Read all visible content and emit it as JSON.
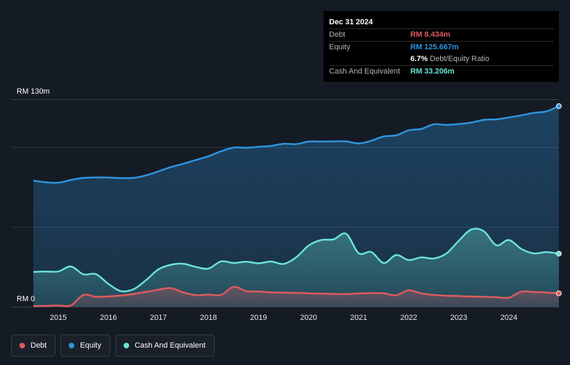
{
  "tooltip": {
    "date": "Dec 31 2024",
    "debt_label": "Debt",
    "debt_value": "RM 8.434m",
    "equity_label": "Equity",
    "equity_value": "RM 125.667m",
    "ratio_value": "6.7%",
    "ratio_label": "Debt/Equity Ratio",
    "cash_label": "Cash And Equivalent",
    "cash_value": "RM 33.206m"
  },
  "legend": {
    "debt": "Debt",
    "equity": "Equity",
    "cash": "Cash And Equivalent"
  },
  "colors": {
    "background": "#151b24",
    "debt": "#e05a5f",
    "equity": "#2f95e0",
    "cash": "#6be3d5",
    "grid": "#2a3340"
  },
  "chart_data": {
    "type": "area",
    "title": "",
    "xlabel": "",
    "ylabel": "",
    "ylim": [
      0,
      130
    ],
    "y_top_label": "RM 130m",
    "y_bottom_label": "RM 0",
    "x_ticks": [
      "2015",
      "2016",
      "2017",
      "2018",
      "2019",
      "2020",
      "2021",
      "2022",
      "2023",
      "2024"
    ],
    "x_tick_values": [
      2015,
      2016,
      2017,
      2018,
      2019,
      2020,
      2021,
      2022,
      2023,
      2024
    ],
    "xlim": [
      2014.5,
      2025.0
    ],
    "series": [
      {
        "name": "Equity",
        "key": "equity",
        "points": [
          [
            2014.5,
            79.0
          ],
          [
            2014.75,
            78.0
          ],
          [
            2015.0,
            77.7
          ],
          [
            2015.25,
            79.4
          ],
          [
            2015.5,
            80.7
          ],
          [
            2015.75,
            81.0
          ],
          [
            2016.0,
            80.9
          ],
          [
            2016.25,
            80.6
          ],
          [
            2016.5,
            80.7
          ],
          [
            2016.75,
            82.3
          ],
          [
            2017.0,
            84.8
          ],
          [
            2017.25,
            87.5
          ],
          [
            2017.5,
            89.6
          ],
          [
            2017.75,
            91.9
          ],
          [
            2018.0,
            94.3
          ],
          [
            2018.25,
            97.4
          ],
          [
            2018.5,
            99.7
          ],
          [
            2018.75,
            99.6
          ],
          [
            2019.0,
            100.2
          ],
          [
            2019.25,
            100.8
          ],
          [
            2019.5,
            102.1
          ],
          [
            2019.75,
            101.9
          ],
          [
            2020.0,
            103.5
          ],
          [
            2020.25,
            103.5
          ],
          [
            2020.5,
            103.6
          ],
          [
            2020.75,
            103.6
          ],
          [
            2021.0,
            102.3
          ],
          [
            2021.25,
            104.0
          ],
          [
            2021.5,
            106.7
          ],
          [
            2021.75,
            107.4
          ],
          [
            2022.0,
            110.5
          ],
          [
            2022.25,
            111.4
          ],
          [
            2022.5,
            114.3
          ],
          [
            2022.75,
            113.9
          ],
          [
            2023.0,
            114.5
          ],
          [
            2023.25,
            115.4
          ],
          [
            2023.5,
            117.1
          ],
          [
            2023.75,
            117.4
          ],
          [
            2024.0,
            118.6
          ],
          [
            2024.25,
            119.9
          ],
          [
            2024.5,
            121.5
          ],
          [
            2024.75,
            122.4
          ],
          [
            2025.0,
            125.7
          ]
        ]
      },
      {
        "name": "Cash And Equivalent",
        "key": "cash",
        "points": [
          [
            2014.5,
            21.8
          ],
          [
            2014.75,
            22.1
          ],
          [
            2015.0,
            22.1
          ],
          [
            2015.25,
            25.2
          ],
          [
            2015.5,
            20.3
          ],
          [
            2015.75,
            20.4
          ],
          [
            2016.0,
            14.3
          ],
          [
            2016.25,
            9.8
          ],
          [
            2016.5,
            10.9
          ],
          [
            2016.75,
            16.6
          ],
          [
            2017.0,
            23.4
          ],
          [
            2017.25,
            26.3
          ],
          [
            2017.5,
            26.9
          ],
          [
            2017.75,
            24.9
          ],
          [
            2018.0,
            23.9
          ],
          [
            2018.25,
            28.4
          ],
          [
            2018.5,
            27.4
          ],
          [
            2018.75,
            28.2
          ],
          [
            2019.0,
            27.2
          ],
          [
            2019.25,
            28.3
          ],
          [
            2019.5,
            26.8
          ],
          [
            2019.75,
            30.9
          ],
          [
            2020.0,
            38.3
          ],
          [
            2020.25,
            41.8
          ],
          [
            2020.5,
            42.2
          ],
          [
            2020.75,
            45.7
          ],
          [
            2021.0,
            33.5
          ],
          [
            2021.25,
            34.3
          ],
          [
            2021.5,
            27.4
          ],
          [
            2021.75,
            32.4
          ],
          [
            2022.0,
            29.2
          ],
          [
            2022.25,
            30.9
          ],
          [
            2022.5,
            30.2
          ],
          [
            2022.75,
            33.3
          ],
          [
            2023.0,
            41.3
          ],
          [
            2023.25,
            48.4
          ],
          [
            2023.5,
            47.3
          ],
          [
            2023.75,
            38.5
          ],
          [
            2024.0,
            41.8
          ],
          [
            2024.25,
            36.2
          ],
          [
            2024.5,
            33.4
          ],
          [
            2024.75,
            34.2
          ],
          [
            2025.0,
            33.2
          ]
        ]
      },
      {
        "name": "Debt",
        "key": "debt",
        "points": [
          [
            2014.5,
            0.4
          ],
          [
            2014.75,
            0.5
          ],
          [
            2015.0,
            0.8
          ],
          [
            2015.25,
            0.8
          ],
          [
            2015.5,
            7.4
          ],
          [
            2015.75,
            6.2
          ],
          [
            2016.0,
            6.5
          ],
          [
            2016.25,
            7.0
          ],
          [
            2016.5,
            8.0
          ],
          [
            2016.75,
            9.3
          ],
          [
            2017.0,
            10.7
          ],
          [
            2017.25,
            11.6
          ],
          [
            2017.5,
            8.9
          ],
          [
            2017.75,
            7.2
          ],
          [
            2018.0,
            7.6
          ],
          [
            2018.25,
            7.4
          ],
          [
            2018.5,
            12.5
          ],
          [
            2018.75,
            9.8
          ],
          [
            2019.0,
            9.5
          ],
          [
            2019.25,
            9.0
          ],
          [
            2019.5,
            8.8
          ],
          [
            2019.75,
            8.7
          ],
          [
            2020.0,
            8.4
          ],
          [
            2020.25,
            8.2
          ],
          [
            2020.5,
            8.0
          ],
          [
            2020.75,
            7.9
          ],
          [
            2021.0,
            8.3
          ],
          [
            2021.25,
            8.5
          ],
          [
            2021.5,
            8.4
          ],
          [
            2021.75,
            7.2
          ],
          [
            2022.0,
            10.3
          ],
          [
            2022.25,
            8.3
          ],
          [
            2022.5,
            7.4
          ],
          [
            2022.75,
            6.9
          ],
          [
            2023.0,
            6.7
          ],
          [
            2023.25,
            6.4
          ],
          [
            2023.5,
            6.2
          ],
          [
            2023.75,
            5.9
          ],
          [
            2024.0,
            5.7
          ],
          [
            2024.25,
            9.4
          ],
          [
            2024.5,
            9.2
          ],
          [
            2024.75,
            8.9
          ],
          [
            2025.0,
            8.4
          ]
        ]
      }
    ]
  }
}
